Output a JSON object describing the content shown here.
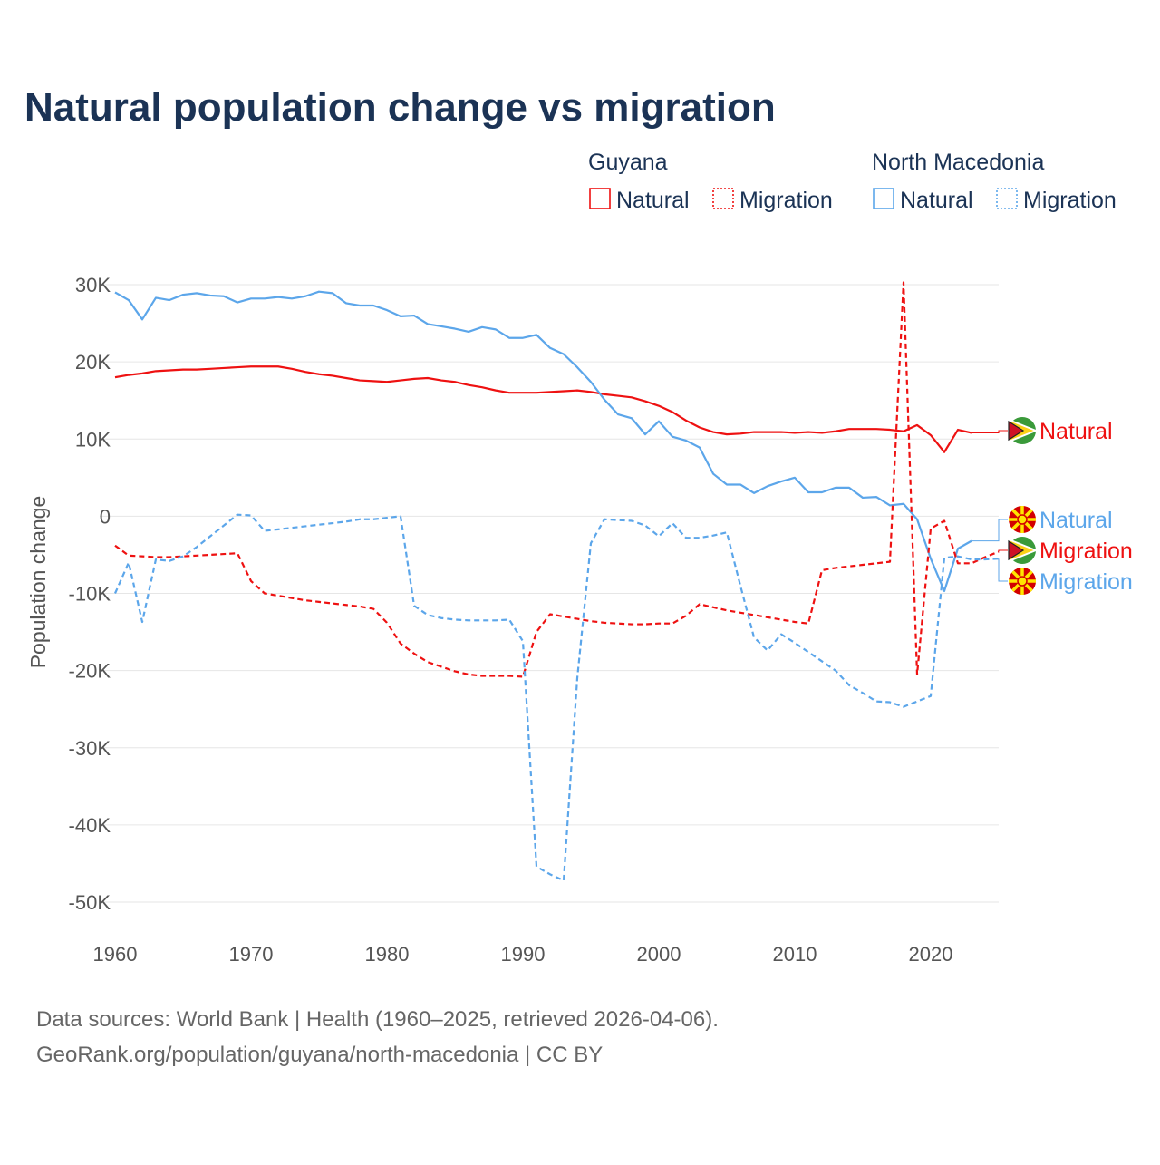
{
  "chart_data": {
    "type": "line",
    "title": "Natural population change vs migration",
    "xlabel": "",
    "ylabel": "Population change",
    "xlim": [
      1960,
      2025
    ],
    "ylim": [
      -50000,
      30000
    ],
    "x_ticks": [
      1960,
      1970,
      1980,
      1990,
      2000,
      2010,
      2020
    ],
    "x_tick_labels": [
      "1960",
      "1970",
      "1980",
      "1990",
      "2000",
      "2010",
      "2020"
    ],
    "y_ticks": [
      30000,
      20000,
      10000,
      0,
      -10000,
      -20000,
      -30000,
      -40000,
      -50000
    ],
    "y_tick_labels": [
      "30K",
      "20K",
      "10K",
      "0",
      "-10K",
      "-20K",
      "-30K",
      "-40K",
      "-50K"
    ],
    "grid": true,
    "legend_placement": "top-right",
    "legend_groups": [
      {
        "title": "Guyana",
        "items": [
          "Natural",
          "Migration"
        ]
      },
      {
        "title": "North Macedonia",
        "items": [
          "Natural",
          "Migration"
        ]
      }
    ],
    "series": [
      {
        "name": "Guyana Natural",
        "country": "Guyana",
        "kind": "Natural",
        "color": "#ee1111",
        "dash": "solid",
        "start_year": 1960,
        "end_label": "Natural",
        "flag": "guyana",
        "values": [
          18000,
          18300,
          18500,
          18800,
          18900,
          19000,
          19000,
          19100,
          19200,
          19300,
          19400,
          19400,
          19400,
          19100,
          18700,
          18400,
          18200,
          17900,
          17600,
          17500,
          17400,
          17600,
          17800,
          17900,
          17600,
          17400,
          17000,
          16700,
          16300,
          16000,
          16000,
          16000,
          16100,
          16200,
          16300,
          16100,
          15800,
          15600,
          15400,
          14900,
          14300,
          13500,
          12400,
          11500,
          10900,
          10600,
          10700,
          10900,
          10900,
          10900,
          10800,
          10900,
          10800,
          11000,
          11300,
          11300,
          11300,
          11200,
          11000,
          11800,
          10500,
          8300,
          11200,
          10800
        ]
      },
      {
        "name": "North Macedonia Natural",
        "country": "North Macedonia",
        "kind": "Natural",
        "color": "#5ca6ea",
        "dash": "solid",
        "start_year": 1960,
        "end_label": "Natural",
        "flag": "north-macedonia",
        "values": [
          29000,
          28000,
          25500,
          28300,
          28000,
          28700,
          28900,
          28600,
          28500,
          27700,
          28200,
          28200,
          28400,
          28200,
          28500,
          29100,
          28900,
          27600,
          27300,
          27300,
          26700,
          25900,
          26000,
          24900,
          24600,
          24300,
          23900,
          24500,
          24200,
          23100,
          23100,
          23500,
          21800,
          21000,
          19300,
          17400,
          15100,
          13200,
          12700,
          10600,
          12300,
          10300,
          9800,
          8900,
          5500,
          4100,
          4100,
          3000,
          3900,
          4500,
          5000,
          3100,
          3100,
          3700,
          3700,
          2400,
          2500,
          1400,
          1600,
          -400,
          -5500,
          -9700,
          -4200,
          -3200
        ]
      },
      {
        "name": "Guyana Migration",
        "country": "Guyana",
        "kind": "Migration",
        "color": "#ee1111",
        "dash": "dashed",
        "start_year": 1960,
        "end_label": "Migration",
        "flag": "guyana",
        "values": [
          -3800,
          -5100,
          -5200,
          -5300,
          -5300,
          -5200,
          -5100,
          -5000,
          -4900,
          -4800,
          -8400,
          -10000,
          -10300,
          -10600,
          -10900,
          -11100,
          -11300,
          -11500,
          -11700,
          -12000,
          -13800,
          -16500,
          -17800,
          -18900,
          -19500,
          -20100,
          -20500,
          -20700,
          -20700,
          -20700,
          -20800,
          -15000,
          -12700,
          -13000,
          -13300,
          -13600,
          -13800,
          -13900,
          -14000,
          -14000,
          -13900,
          -13900,
          -12900,
          -11400,
          -11800,
          -12200,
          -12500,
          -12800,
          -13100,
          -13400,
          -13700,
          -13900,
          -7000,
          -6700,
          -6500,
          -6300,
          -6100,
          -5900,
          30300,
          -20500,
          -1600,
          -600,
          -6100,
          -6100,
          -5300,
          -4600
        ]
      },
      {
        "name": "North Macedonia Migration",
        "country": "North Macedonia",
        "kind": "Migration",
        "color": "#5ca6ea",
        "dash": "dashed",
        "start_year": 1960,
        "end_label": "Migration",
        "flag": "north-macedonia",
        "values": [
          -10000,
          -6000,
          -13700,
          -5600,
          -5800,
          -5200,
          -4000,
          -2600,
          -1200,
          200,
          100,
          -1900,
          -1700,
          -1500,
          -1300,
          -1100,
          -900,
          -700,
          -400,
          -400,
          -200,
          0,
          -11600,
          -12800,
          -13200,
          -13400,
          -13500,
          -13500,
          -13500,
          -13400,
          -16200,
          -45400,
          -46400,
          -47200,
          -21000,
          -3500,
          -400,
          -500,
          -600,
          -1200,
          -2600,
          -900,
          -2800,
          -2800,
          -2500,
          -2100,
          -9000,
          -15700,
          -17400,
          -15300,
          -16400,
          -17600,
          -18800,
          -20000,
          -21900,
          -22900,
          -24000,
          -24100,
          -24700,
          -24000,
          -23300,
          -5400,
          -5200,
          -5600,
          -5600,
          -5500
        ]
      }
    ]
  },
  "footer": {
    "line1": "Data sources: World Bank | Health (1960–2025, retrieved 2026-04-06).",
    "line2": "GeoRank.org/population/guyana/north-macedonia | CC BY"
  }
}
